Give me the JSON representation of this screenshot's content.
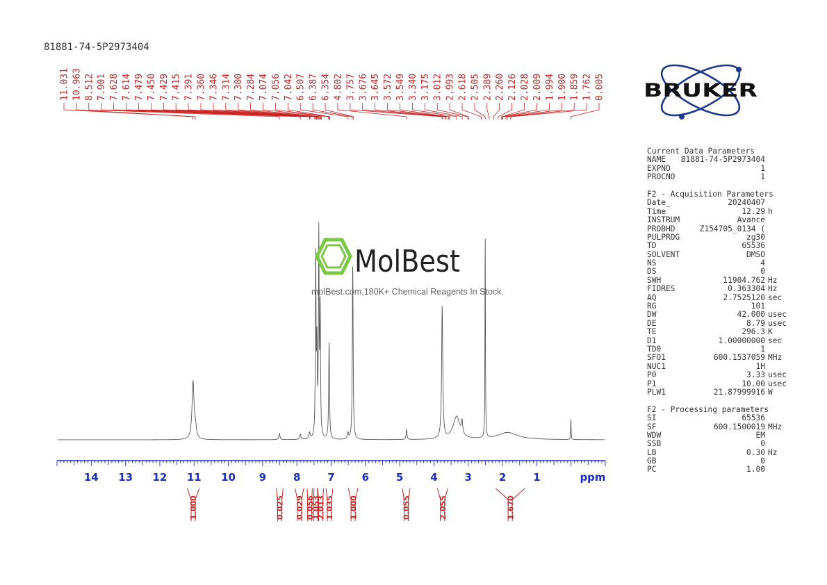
{
  "sample_name": "81881-74-5P2973404",
  "watermark": {
    "brand": "MolBest",
    "tagline": "molBest.com,180K+ Chemical Reagents In Stock."
  },
  "bruker_logo": "BRUKER",
  "colors": {
    "peak_labels": "#cc2222",
    "axis": "#1a2ebf",
    "spectrum": "#555555",
    "watermark_green": "#7ac943"
  },
  "chart_data": {
    "type": "line",
    "title": "81881-74-5P2973404",
    "xlabel": "ppm",
    "xlim": [
      15.0,
      -1.0
    ],
    "x_reversed": true,
    "xticks": [
      14,
      13,
      12,
      11,
      10,
      9,
      8,
      7,
      6,
      5,
      4,
      3,
      2,
      1
    ],
    "peak_labels": [
      "11.031",
      "10.963",
      "8.512",
      "7.901",
      "7.628",
      "7.614",
      "7.479",
      "7.450",
      "7.429",
      "7.415",
      "7.391",
      "7.360",
      "7.346",
      "7.314",
      "7.300",
      "7.284",
      "7.074",
      "7.056",
      "7.042",
      "6.507",
      "6.387",
      "6.354",
      "4.802",
      "3.757",
      "3.676",
      "3.645",
      "3.572",
      "3.549",
      "3.340",
      "3.175",
      "3.012",
      "2.993",
      "2.618",
      "2.505",
      "2.389",
      "2.260",
      "2.126",
      "2.028",
      "2.009",
      "1.994",
      "1.900",
      "1.859",
      "1.762",
      "0.005"
    ],
    "peaks": [
      {
        "ppm": 11.03,
        "height": 0.28,
        "width": 0.035
      },
      {
        "ppm": 10.96,
        "height": 0.05,
        "width": 0.03
      },
      {
        "ppm": 8.51,
        "height": 0.03,
        "width": 0.02
      },
      {
        "ppm": 7.9,
        "height": 0.025,
        "width": 0.02
      },
      {
        "ppm": 7.63,
        "height": 0.03,
        "width": 0.02
      },
      {
        "ppm": 7.45,
        "height": 0.88,
        "width": 0.012
      },
      {
        "ppm": 7.415,
        "height": 0.4,
        "width": 0.012
      },
      {
        "ppm": 7.36,
        "height": 0.97,
        "width": 0.012
      },
      {
        "ppm": 7.32,
        "height": 0.6,
        "width": 0.012
      },
      {
        "ppm": 7.06,
        "height": 0.47,
        "width": 0.014
      },
      {
        "ppm": 6.51,
        "height": 0.03,
        "width": 0.02
      },
      {
        "ppm": 6.37,
        "height": 0.85,
        "width": 0.014
      },
      {
        "ppm": 4.8,
        "height": 0.05,
        "width": 0.015
      },
      {
        "ppm": 3.76,
        "height": 0.64,
        "width": 0.02
      },
      {
        "ppm": 3.34,
        "height": 0.11,
        "width": 0.12
      },
      {
        "ppm": 3.18,
        "height": 0.06,
        "width": 0.02
      },
      {
        "ppm": 2.505,
        "height": 1.0,
        "width": 0.008
      },
      {
        "ppm": 1.85,
        "height": 0.035,
        "width": 0.35
      },
      {
        "ppm": 0.005,
        "height": 0.1,
        "width": 0.008
      }
    ],
    "integrals": [
      {
        "value": "1.000",
        "from": 11.2,
        "to": 10.85
      },
      {
        "value": "0.025",
        "from": 8.6,
        "to": 8.4
      },
      {
        "value": "0.029",
        "from": 8.05,
        "to": 7.8
      },
      {
        "value": "0.056",
        "from": 7.7,
        "to": 7.55
      },
      {
        "value": "1.053",
        "from": 7.5,
        "to": 7.4
      },
      {
        "value": "2.013",
        "from": 7.39,
        "to": 7.22
      },
      {
        "value": "1.035",
        "from": 7.15,
        "to": 6.95
      },
      {
        "value": "1.000",
        "from": 6.5,
        "to": 6.22
      },
      {
        "value": "0.055",
        "from": 4.92,
        "to": 4.7
      },
      {
        "value": "2.055",
        "from": 3.9,
        "to": 3.6
      },
      {
        "value": "1.670",
        "from": 2.2,
        "to": 1.35
      }
    ]
  },
  "parameters": {
    "current": {
      "title": "Current Data Parameters",
      "rows": [
        {
          "key": "NAME",
          "value": "81881-74-5P2973404",
          "unit": ""
        },
        {
          "key": "EXPNO",
          "value": "1",
          "unit": ""
        },
        {
          "key": "PROCNO",
          "value": "1",
          "unit": ""
        }
      ]
    },
    "acquisition": {
      "title": "F2 - Acquisition Parameters",
      "rows": [
        {
          "key": "Date_",
          "value": "20240407",
          "unit": ""
        },
        {
          "key": "Time",
          "value": "12.29",
          "unit": "h"
        },
        {
          "key": "INSTRUM",
          "value": "Avance",
          "unit": ""
        },
        {
          "key": "PROBHD",
          "value": "Z154705_0134 (",
          "unit": ""
        },
        {
          "key": "PULPROG",
          "value": "zg30",
          "unit": ""
        },
        {
          "key": "TD",
          "value": "65536",
          "unit": ""
        },
        {
          "key": "SOLVENT",
          "value": "DMSO",
          "unit": ""
        },
        {
          "key": "NS",
          "value": "4",
          "unit": ""
        },
        {
          "key": "DS",
          "value": "0",
          "unit": ""
        },
        {
          "key": "SWH",
          "value": "11904.762",
          "unit": "Hz"
        },
        {
          "key": "FIDRES",
          "value": "0.363304",
          "unit": "Hz"
        },
        {
          "key": "AQ",
          "value": "2.7525120",
          "unit": "sec"
        },
        {
          "key": "RG",
          "value": "101",
          "unit": ""
        },
        {
          "key": "DW",
          "value": "42.000",
          "unit": "usec"
        },
        {
          "key": "DE",
          "value": "8.79",
          "unit": "usec"
        },
        {
          "key": "TE",
          "value": "296.3",
          "unit": "K"
        },
        {
          "key": "D1",
          "value": "1.00000000",
          "unit": "sec"
        },
        {
          "key": "TD0",
          "value": "1",
          "unit": ""
        },
        {
          "key": "SFO1",
          "value": "600.1537059",
          "unit": "MHz"
        },
        {
          "key": "NUC1",
          "value": "1H",
          "unit": ""
        },
        {
          "key": "P0",
          "value": "3.33",
          "unit": "usec"
        },
        {
          "key": "P1",
          "value": "10.00",
          "unit": "usec"
        },
        {
          "key": "PLW1",
          "value": "21.87999916",
          "unit": "W"
        }
      ]
    },
    "processing": {
      "title": "F2 - Processing parameters",
      "rows": [
        {
          "key": "SI",
          "value": "65536",
          "unit": ""
        },
        {
          "key": "SF",
          "value": "600.1500019",
          "unit": "MHz"
        },
        {
          "key": "WDW",
          "value": "EM",
          "unit": ""
        },
        {
          "key": "SSB",
          "value": "0",
          "unit": ""
        },
        {
          "key": "LB",
          "value": "0.30",
          "unit": "Hz"
        },
        {
          "key": "GB",
          "value": "0",
          "unit": ""
        },
        {
          "key": "PC",
          "value": "1.00",
          "unit": ""
        }
      ]
    }
  }
}
